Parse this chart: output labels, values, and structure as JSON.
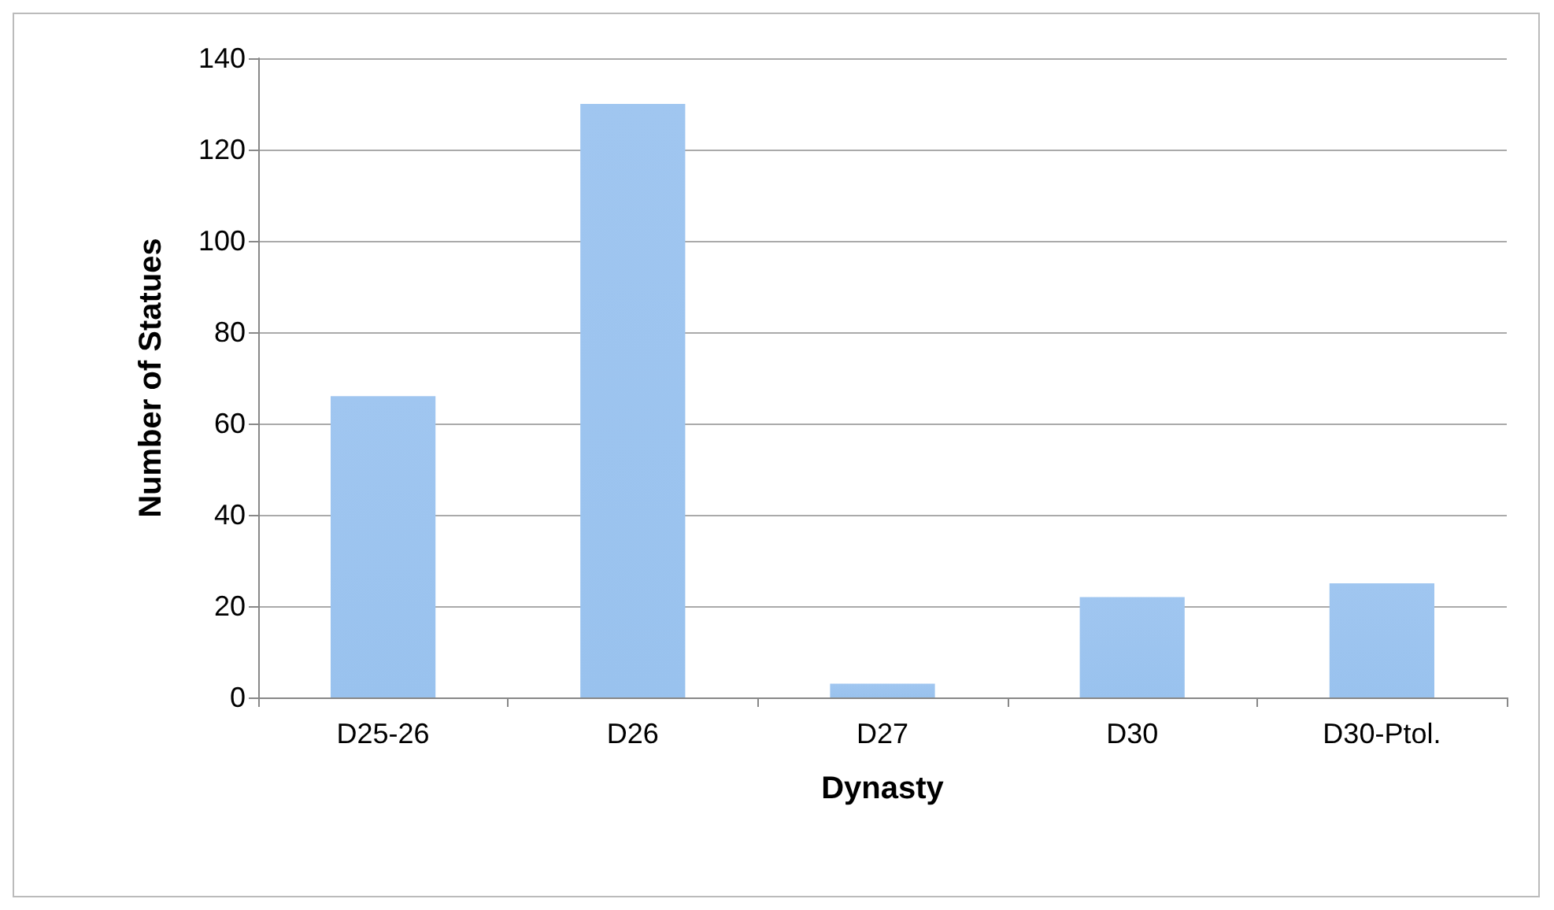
{
  "chart_data": {
    "type": "bar",
    "xlabel": "Dynasty",
    "ylabel": "Number of Statues",
    "categories": [
      "D25-26",
      "D26",
      "D27",
      "D30",
      "D30-Ptol."
    ],
    "values": [
      66,
      130,
      3,
      22,
      25
    ],
    "color": "#6ea8e8",
    "ylim": [
      0,
      140
    ],
    "yticks": [
      0,
      20,
      40,
      60,
      80,
      100,
      120,
      140
    ],
    "grid": "y"
  }
}
